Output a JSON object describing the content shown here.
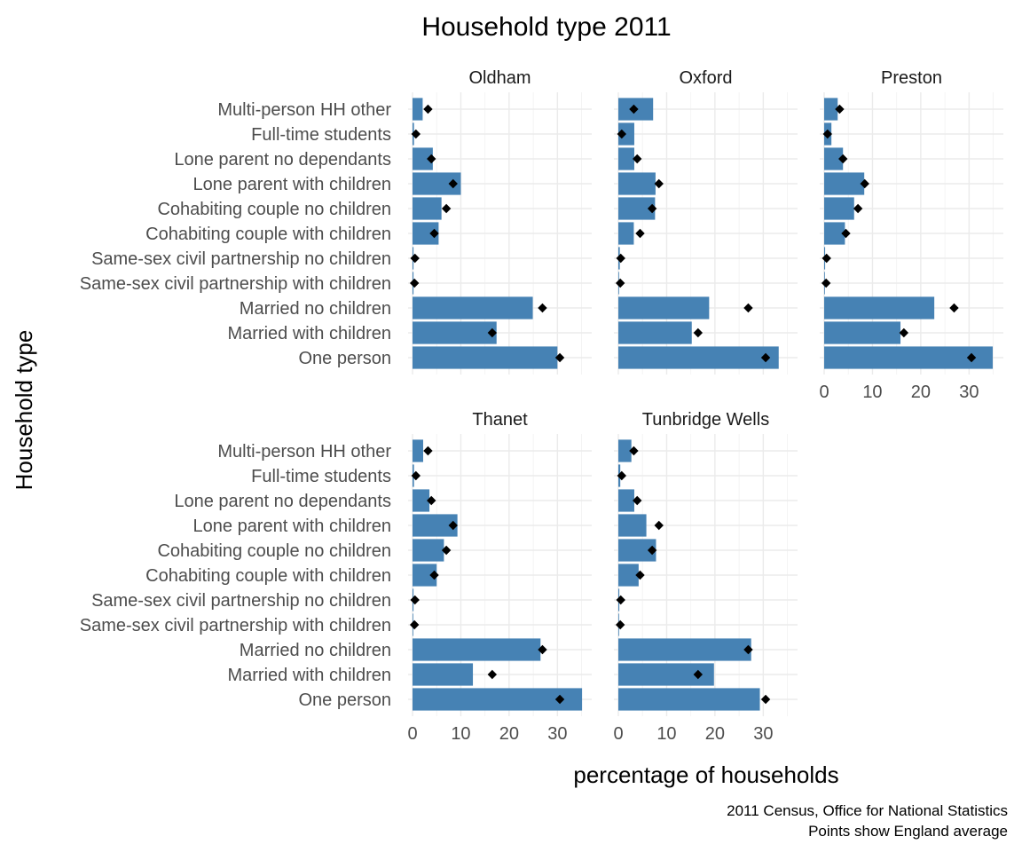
{
  "chart_data": {
    "type": "bar",
    "title": "Household type 2011",
    "xlabel": "percentage of households",
    "ylabel": "Household type",
    "caption_lines": [
      "2011 Census, Office for National Statistics",
      "Points show England average"
    ],
    "categories": [
      "Multi-person HH other",
      "Full-time students",
      "Lone parent no dependants",
      "Lone parent with children",
      "Cohabiting couple no children",
      "Cohabiting couple with children",
      "Same-sex civil partnership no children",
      "Same-sex civil partnership with children",
      "Married no children",
      "Married with children",
      "One person"
    ],
    "england_average": [
      3.2,
      0.7,
      3.9,
      8.4,
      7.0,
      4.5,
      0.5,
      0.4,
      26.9,
      16.5,
      30.5
    ],
    "xlim": [
      0,
      36
    ],
    "xticks": [
      0,
      10,
      20,
      30
    ],
    "bar_color": "#4682b4",
    "point_color": "#000000",
    "grid": true,
    "panels": [
      {
        "name": "Oldham",
        "values": [
          2.1,
          0.3,
          4.2,
          10.0,
          6.0,
          5.4,
          0.2,
          0.2,
          24.9,
          17.4,
          30.0
        ]
      },
      {
        "name": "Oxford",
        "values": [
          7.2,
          3.3,
          3.3,
          7.7,
          7.6,
          3.2,
          0.3,
          0.1,
          18.8,
          15.2,
          33.2
        ]
      },
      {
        "name": "Preston",
        "values": [
          2.8,
          1.5,
          3.9,
          8.3,
          6.2,
          4.3,
          0.2,
          0.1,
          22.8,
          15.8,
          34.9
        ]
      },
      {
        "name": "Thanet",
        "values": [
          2.2,
          0.3,
          3.5,
          9.3,
          6.5,
          5.0,
          0.2,
          0.1,
          26.5,
          12.5,
          35.1
        ]
      },
      {
        "name": "Tunbridge Wells",
        "values": [
          2.7,
          0.4,
          3.3,
          5.8,
          7.8,
          4.2,
          0.2,
          0.1,
          27.5,
          19.8,
          29.3
        ]
      }
    ]
  }
}
